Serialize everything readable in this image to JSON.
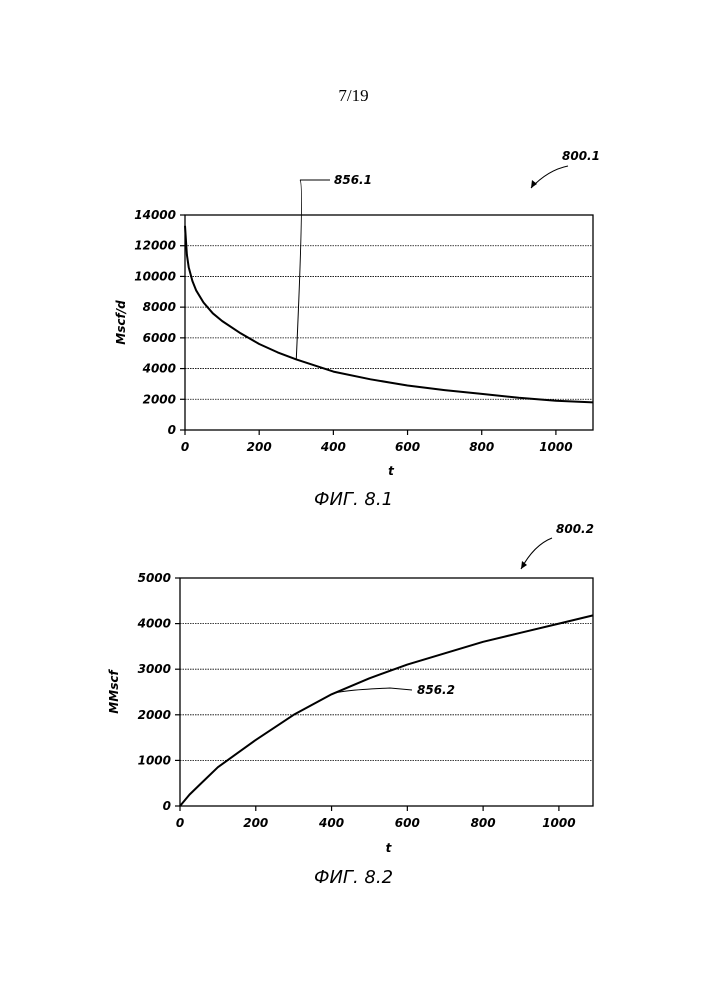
{
  "page": {
    "number": "7/19"
  },
  "chart_data": [
    {
      "type": "line",
      "ref": "800.1",
      "caption": "ФИГ. 8.1",
      "xlabel": "t",
      "ylabel": "Mscf/d",
      "xlim": [
        0,
        1100
      ],
      "ylim": [
        0,
        14000
      ],
      "xticks": [
        0,
        200,
        400,
        600,
        800,
        1000
      ],
      "yticks": [
        0,
        2000,
        4000,
        6000,
        8000,
        10000,
        12000,
        14000
      ],
      "grid": "horizontal",
      "series": [
        {
          "label": "856.1",
          "x": [
            0,
            5,
            10,
            20,
            30,
            50,
            75,
            100,
            150,
            200,
            250,
            300,
            400,
            500,
            600,
            700,
            800,
            900,
            1000,
            1100
          ],
          "y": [
            13300,
            11400,
            10600,
            9700,
            9100,
            8300,
            7600,
            7100,
            6300,
            5600,
            5050,
            4600,
            3800,
            3300,
            2900,
            2600,
            2350,
            2100,
            1900,
            1800
          ]
        }
      ]
    },
    {
      "type": "line",
      "ref": "800.2",
      "caption": "ФИГ. 8.2",
      "xlabel": "t",
      "ylabel": "MMscf",
      "xlim": [
        0,
        1090
      ],
      "ylim": [
        0,
        5000
      ],
      "xticks": [
        0,
        200,
        400,
        600,
        800,
        1000
      ],
      "yticks": [
        0,
        1000,
        2000,
        3000,
        4000,
        5000
      ],
      "grid": "horizontal",
      "series": [
        {
          "label": "856.2",
          "x": [
            0,
            25,
            50,
            100,
            150,
            200,
            300,
            400,
            500,
            600,
            700,
            800,
            900,
            1000,
            1090
          ],
          "y": [
            0,
            250,
            450,
            850,
            1150,
            1450,
            2000,
            2450,
            2800,
            3100,
            3350,
            3600,
            3800,
            4000,
            4180
          ]
        }
      ]
    }
  ]
}
